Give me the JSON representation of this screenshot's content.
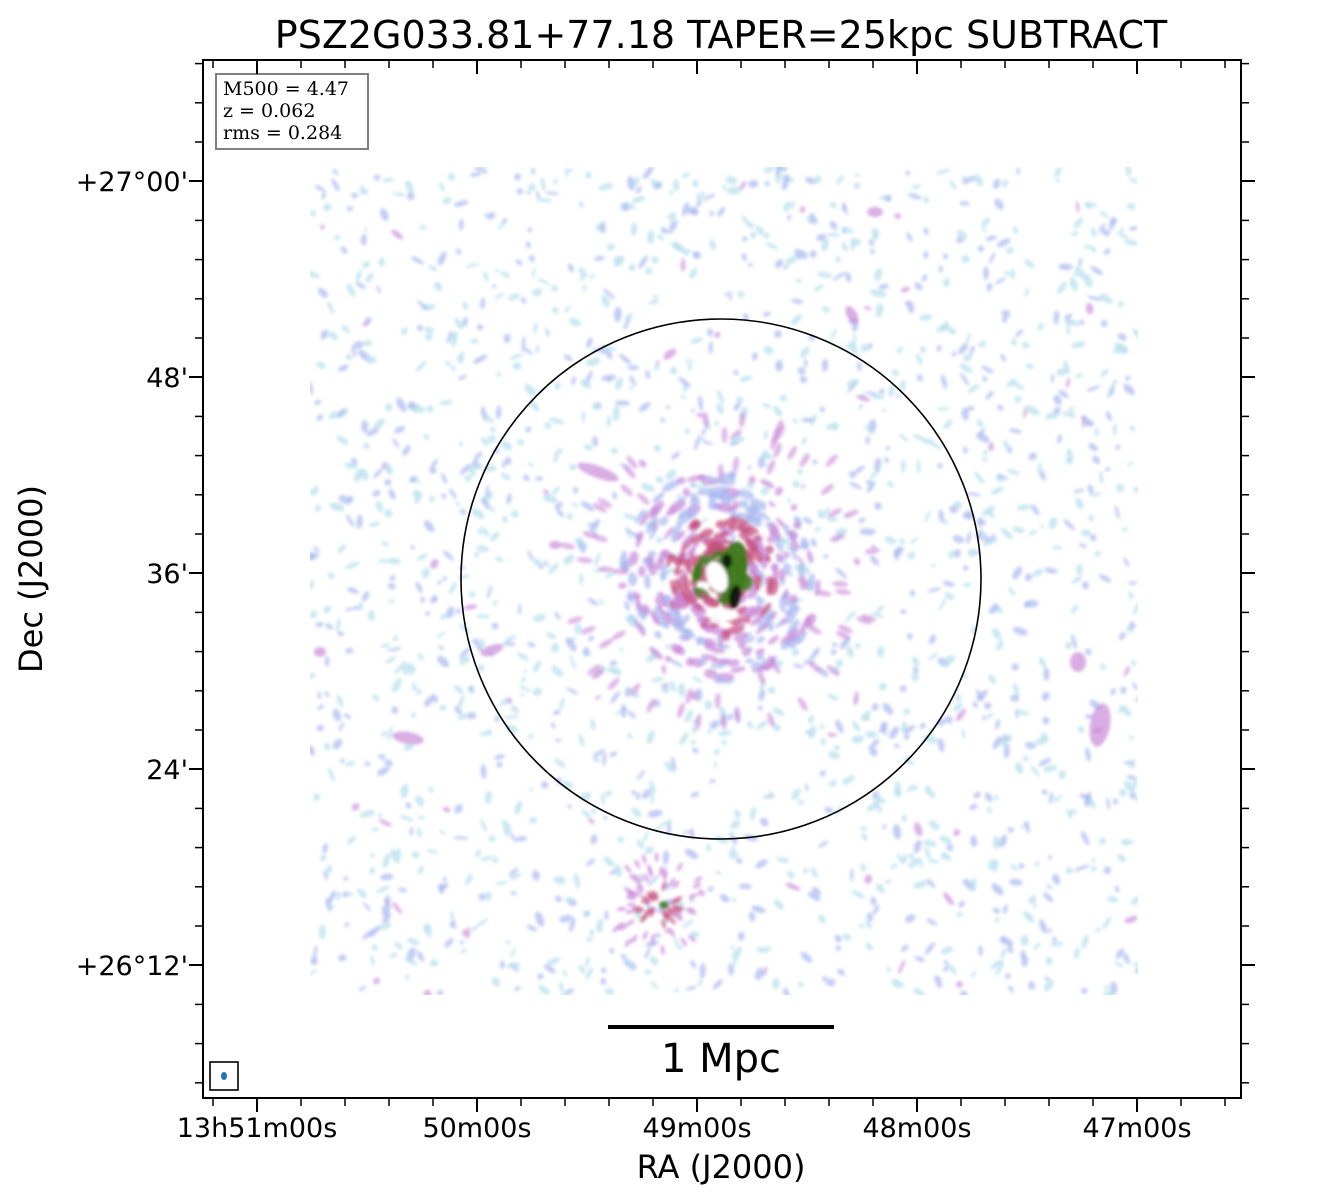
{
  "chart_data": {
    "type": "heatmap",
    "title": "PSZ2G033.81+77.18 TAPER=25kpc SUBTRACT",
    "xlabel": "RA (J2000)",
    "ylabel": "Dec (J2000)",
    "x_ticks": [
      "13h51m00s",
      "50m00s",
      "49m00s",
      "48m00s",
      "47m00s"
    ],
    "y_ticks": [
      "+27°00'",
      "48'",
      "36'",
      "24'",
      "+26°12'"
    ],
    "info_box": [
      "M500 = 4.47",
      "z = 0.062",
      "rms = 0.284"
    ],
    "scale_bar_label": "1 Mpc",
    "grid": false,
    "colormap": [
      "#b9e0ec",
      "#a9b8f0",
      "#c98ad8",
      "#c7507f",
      "#3f7a1e",
      "#0a1a0a"
    ],
    "circle_color": "#000000",
    "beam_color": "#1f77b4"
  }
}
